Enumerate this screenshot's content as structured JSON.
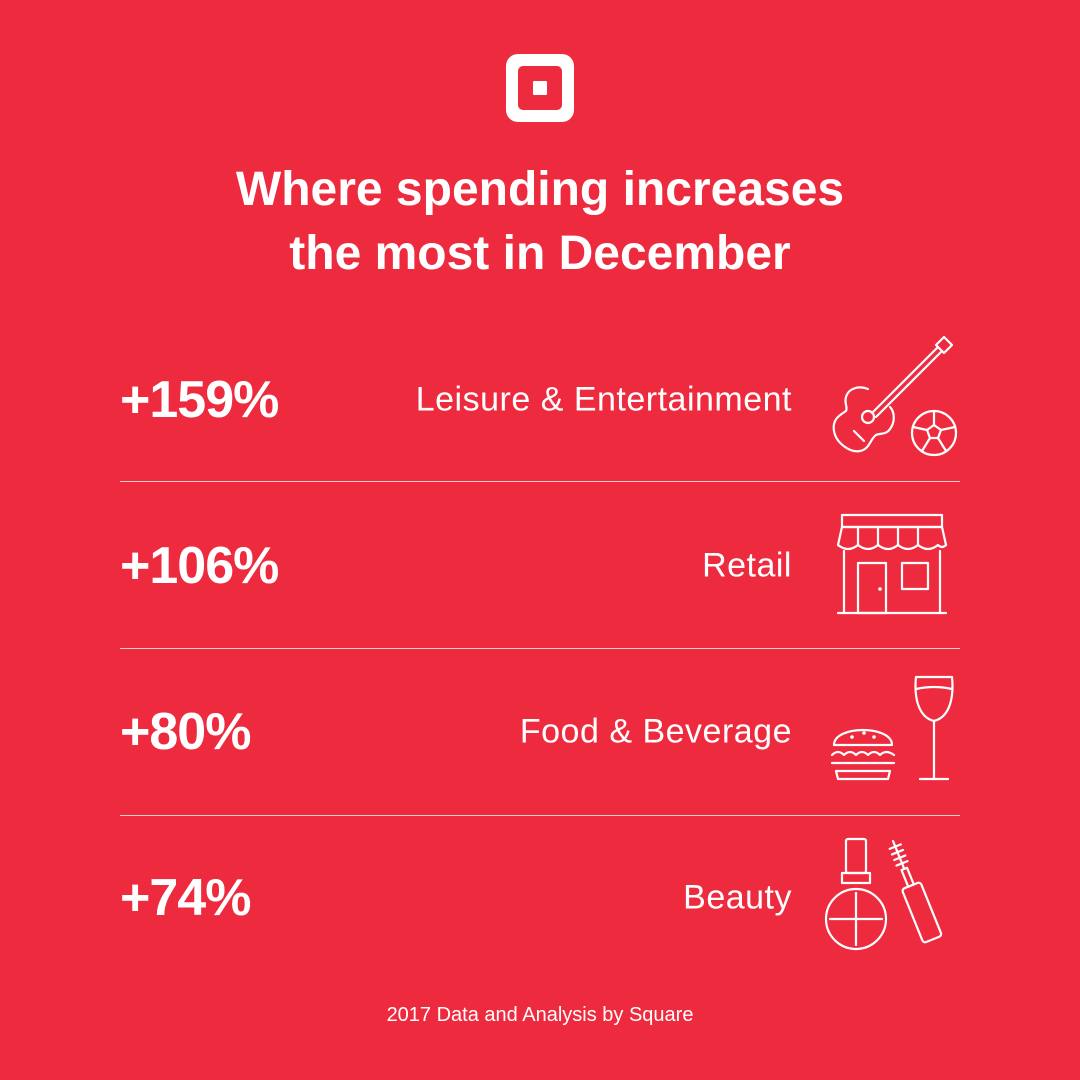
{
  "brand": {
    "logo_icon": "square-logo-icon",
    "background_color": "#EE2A3E",
    "text_color": "#FFFFFF"
  },
  "title": {
    "line1": "Where spending increases",
    "line2": "the most in December"
  },
  "rows": [
    {
      "percent": "+159%",
      "category": "Leisure & Entertainment",
      "icon": "guitar-soccer-ball-icon"
    },
    {
      "percent": "+106%",
      "category": "Retail",
      "icon": "storefront-icon"
    },
    {
      "percent": "+80%",
      "category": "Food & Beverage",
      "icon": "burger-wine-glass-icon"
    },
    {
      "percent": "+74%",
      "category": "Beauty",
      "icon": "nail-polish-mascara-icon"
    }
  ],
  "footer": "2017 Data and Analysis by Square"
}
